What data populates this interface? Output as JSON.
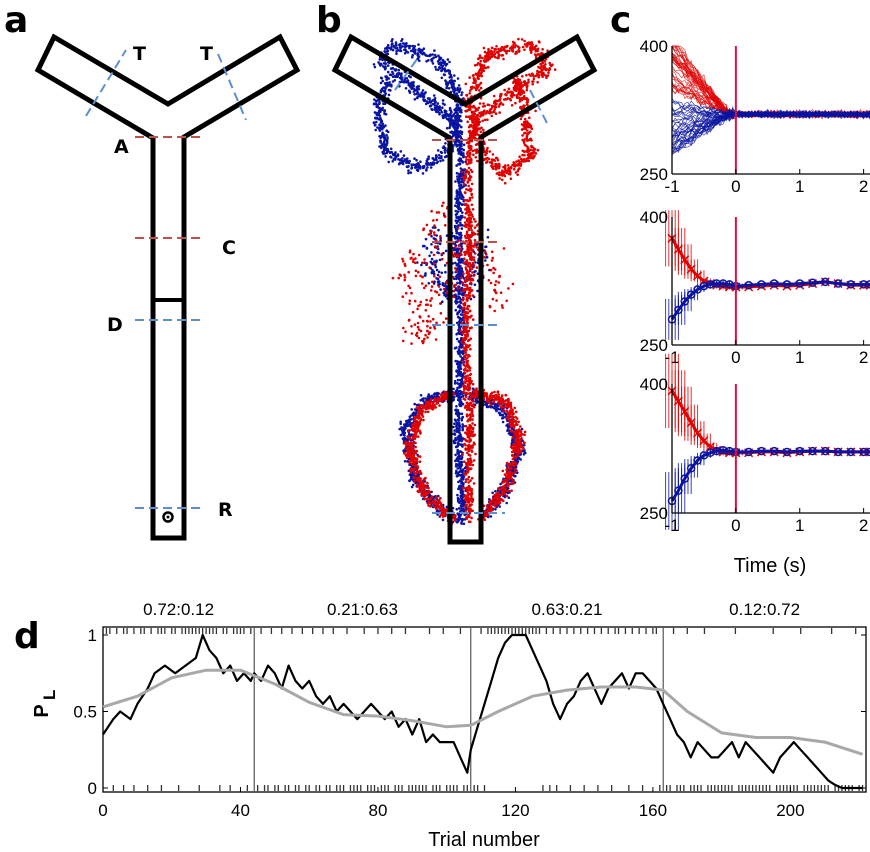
{
  "panels": {
    "a": "a",
    "b": "b",
    "c": "c",
    "d": "d"
  },
  "maze": {
    "markers": {
      "T1": "T",
      "T2": "T",
      "A": "A",
      "C": "C",
      "D": "D",
      "R": "R"
    }
  },
  "colors": {
    "left": "#e00000",
    "right": "#0a14a0",
    "marker_blue": "#5b8fd4",
    "marker_red": "#c0504d",
    "smooth": "#a8a8a8",
    "vline": "#e0103c"
  },
  "chart_data": [
    {
      "panel": "c",
      "type": "line",
      "subtype": "traces",
      "xlim": [
        -1,
        2.1
      ],
      "ylim": [
        250,
        400
      ],
      "x_ticks": [
        "-1",
        "0",
        "1",
        "2"
      ],
      "y_ticks": [
        "250",
        "400"
      ],
      "xlabel": "",
      "series_colors": [
        "#e00000",
        "#0a14a0"
      ]
    },
    {
      "panel": "c",
      "type": "line",
      "subtype": "mean_error",
      "xlim": [
        -1,
        2.1
      ],
      "ylim": [
        250,
        400
      ],
      "x_ticks": [
        "-1",
        "0",
        "1",
        "2"
      ],
      "y_ticks": [
        "250",
        "400"
      ],
      "x": [
        -1.0,
        -0.9,
        -0.8,
        -0.7,
        -0.6,
        -0.5,
        -0.4,
        -0.3,
        -0.2,
        -0.1,
        0.0,
        0.2,
        0.4,
        0.6,
        0.8,
        1.0,
        1.2,
        1.4,
        1.6,
        1.8,
        2.0,
        2.1
      ],
      "series": [
        {
          "color": "#e00000",
          "values": [
            375,
            362,
            350,
            339,
            331,
            325,
            322,
            320,
            319,
            318,
            318,
            318,
            319,
            320,
            319,
            320,
            322,
            324,
            322,
            320,
            320,
            320
          ]
        },
        {
          "color": "#0a14a0",
          "values": [
            280,
            291,
            301,
            309,
            315,
            319,
            321,
            322,
            322,
            321,
            319,
            320,
            321,
            322,
            321,
            322,
            323,
            324,
            322,
            321,
            321,
            321
          ]
        }
      ]
    },
    {
      "panel": "c",
      "type": "line",
      "subtype": "mean_error",
      "xlim": [
        -1,
        2.1
      ],
      "ylim": [
        250,
        400
      ],
      "x_ticks": [
        "-1",
        "0",
        "1",
        "2"
      ],
      "y_ticks": [
        "250",
        "400"
      ],
      "xlabel": "Time (s)",
      "x": [
        -1.0,
        -0.9,
        -0.8,
        -0.7,
        -0.6,
        -0.5,
        -0.4,
        -0.3,
        -0.2,
        -0.1,
        0.0,
        0.2,
        0.4,
        0.6,
        0.8,
        1.0,
        1.2,
        1.4,
        1.6,
        1.8,
        2.0,
        2.1
      ],
      "series": [
        {
          "color": "#e00000",
          "values": [
            392,
            380,
            368,
            355,
            343,
            334,
            327,
            323,
            321,
            320,
            320,
            320,
            321,
            321,
            320,
            321,
            322,
            322,
            321,
            321,
            321,
            321
          ]
        },
        {
          "color": "#0a14a0",
          "values": [
            264,
            276,
            290,
            302,
            311,
            317,
            320,
            322,
            323,
            322,
            321,
            321,
            322,
            322,
            321,
            322,
            322,
            322,
            321,
            321,
            321,
            321
          ]
        }
      ]
    },
    {
      "panel": "d",
      "type": "line",
      "xlim": [
        0,
        222
      ],
      "ylim": [
        0,
        1
      ],
      "x_ticks": [
        "0",
        "40",
        "80",
        "120",
        "160",
        "200"
      ],
      "y_ticks": [
        "0",
        "0.5",
        "1"
      ],
      "xlabel": "Trial number",
      "ylabel": "P",
      "ylabel_sub": "L",
      "block_boundaries": [
        44,
        107,
        163
      ],
      "block_labels": [
        "0.72:0.12",
        "0.21:0.63",
        "0.63:0.21",
        "0.12:0.72"
      ],
      "series": [
        {
          "name": "",
          "color": "#000000",
          "x": [
            0,
            3,
            5,
            8,
            10,
            13,
            15,
            18,
            21,
            24,
            27,
            29,
            31,
            33,
            35,
            37,
            39,
            41,
            43,
            44,
            46,
            48,
            50,
            52,
            54,
            56,
            58,
            60,
            62,
            64,
            66,
            68,
            70,
            72,
            74,
            76,
            78,
            80,
            82,
            84,
            86,
            88,
            90,
            92,
            94,
            96,
            98,
            100,
            102,
            104,
            106,
            107,
            109,
            111,
            113,
            115,
            117,
            119,
            121,
            123,
            125,
            127,
            129,
            131,
            133,
            135,
            137,
            139,
            141,
            143,
            145,
            147,
            149,
            151,
            153,
            155,
            157,
            159,
            161,
            163,
            165,
            167,
            169,
            171,
            173,
            175,
            177,
            179,
            181,
            183,
            185,
            187,
            189,
            191,
            193,
            195,
            197,
            199,
            201,
            203,
            205,
            207,
            209,
            211,
            213,
            215,
            218,
            221
          ],
          "values": [
            0.35,
            0.45,
            0.5,
            0.45,
            0.55,
            0.65,
            0.75,
            0.8,
            0.75,
            0.8,
            0.85,
            1.0,
            0.9,
            0.85,
            0.75,
            0.8,
            0.7,
            0.75,
            0.7,
            0.75,
            0.7,
            0.8,
            0.75,
            0.65,
            0.8,
            0.7,
            0.65,
            0.7,
            0.6,
            0.55,
            0.6,
            0.5,
            0.55,
            0.5,
            0.45,
            0.5,
            0.55,
            0.5,
            0.45,
            0.5,
            0.4,
            0.45,
            0.35,
            0.45,
            0.3,
            0.35,
            0.3,
            0.3,
            0.3,
            0.2,
            0.1,
            0.25,
            0.4,
            0.55,
            0.7,
            0.85,
            0.95,
            1.0,
            1.0,
            1.0,
            0.9,
            0.8,
            0.7,
            0.55,
            0.45,
            0.55,
            0.6,
            0.7,
            0.75,
            0.65,
            0.55,
            0.65,
            0.7,
            0.75,
            0.65,
            0.75,
            0.75,
            0.7,
            0.65,
            0.55,
            0.45,
            0.35,
            0.3,
            0.2,
            0.3,
            0.25,
            0.2,
            0.2,
            0.25,
            0.3,
            0.2,
            0.3,
            0.25,
            0.2,
            0.15,
            0.1,
            0.2,
            0.25,
            0.3,
            0.25,
            0.2,
            0.15,
            0.1,
            0.05,
            0.02,
            0.0,
            0.0,
            0.0
          ]
        },
        {
          "name": "",
          "color": "#a8a8a8",
          "x": [
            0,
            10,
            20,
            30,
            40,
            50,
            60,
            70,
            80,
            90,
            100,
            107,
            115,
            125,
            135,
            145,
            155,
            163,
            170,
            180,
            190,
            200,
            210,
            221
          ],
          "values": [
            0.53,
            0.6,
            0.72,
            0.77,
            0.77,
            0.68,
            0.56,
            0.48,
            0.47,
            0.44,
            0.4,
            0.41,
            0.5,
            0.6,
            0.64,
            0.66,
            0.66,
            0.64,
            0.5,
            0.36,
            0.33,
            0.33,
            0.3,
            0.22
          ]
        }
      ],
      "rasters": {
        "top": [
          1,
          2,
          4,
          6,
          7,
          9,
          11,
          12,
          14,
          16,
          17,
          18,
          20,
          21,
          23,
          24,
          25,
          26,
          27,
          28,
          29,
          30,
          31,
          32,
          33,
          35,
          36,
          38,
          39,
          40,
          41,
          43,
          46,
          49,
          52,
          55,
          58,
          61,
          64,
          67,
          71,
          76,
          80,
          84,
          88,
          95,
          99,
          104,
          110,
          112,
          113,
          114,
          115,
          116,
          117,
          118,
          119,
          120,
          121,
          122,
          123,
          124,
          125,
          126,
          127,
          129,
          131,
          133,
          135,
          137,
          139,
          141,
          143,
          145,
          147,
          149,
          150,
          152,
          154,
          156,
          158,
          160,
          161,
          166,
          170,
          175,
          184,
          195,
          203,
          212,
          219
        ],
        "bottom": [
          3,
          6,
          9,
          13,
          17,
          22,
          28,
          34,
          37,
          42,
          45,
          47,
          48,
          50,
          51,
          53,
          54,
          56,
          57,
          59,
          60,
          62,
          63,
          65,
          66,
          68,
          69,
          70,
          72,
          73,
          74,
          75,
          77,
          78,
          79,
          81,
          82,
          83,
          85,
          86,
          87,
          89,
          90,
          91,
          92,
          93,
          94,
          96,
          97,
          98,
          100,
          101,
          102,
          103,
          105,
          106,
          108,
          109,
          111,
          128,
          130,
          132,
          136,
          140,
          144,
          148,
          153,
          157,
          162,
          164,
          165,
          167,
          168,
          169,
          171,
          172,
          173,
          174,
          176,
          177,
          178,
          179,
          180,
          181,
          182,
          183,
          185,
          186,
          187,
          188,
          189,
          190,
          191,
          192,
          193,
          194,
          196,
          197,
          198,
          199,
          200,
          201,
          202,
          204,
          205,
          206,
          207,
          208,
          209,
          210,
          211,
          213,
          214,
          215,
          216,
          217,
          218,
          220,
          221
        ]
      }
    }
  ]
}
